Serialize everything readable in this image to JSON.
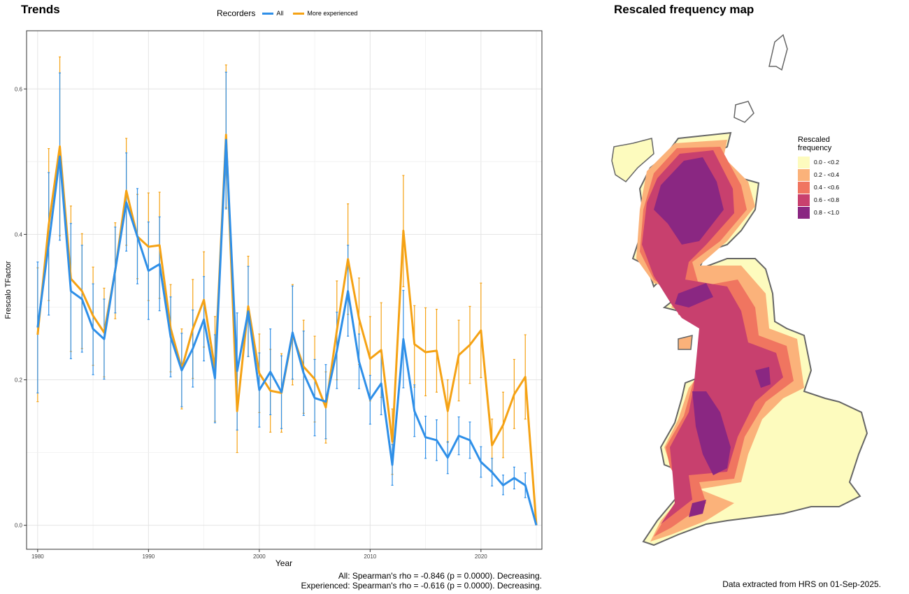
{
  "trends": {
    "title": "Trends",
    "legend_title": "Recorders",
    "caption_all": "All: Spearman's rho = -0.846 (p = 0.0000). Decreasing.",
    "caption_experienced": "Experienced: Spearman's rho = -0.616 (p = 0.0000). Decreasing."
  },
  "map": {
    "title": "Rescaled frequency map",
    "legend_title": "Rescaled frequency",
    "legend_items": [
      {
        "label": "0.0 - <0.2",
        "color": "#FDFBBE"
      },
      {
        "label": "0.2 - <0.4",
        "color": "#FBB27A"
      },
      {
        "label": "0.4 - <0.6",
        "color": "#F07560"
      },
      {
        "label": "0.6 - <0.8",
        "color": "#C8406E"
      },
      {
        "label": "0.8 - <1.0",
        "color": "#8A2782"
      }
    ],
    "footer": "Data extracted from HRS on 01-Sep-2025."
  },
  "chart_data": {
    "type": "line",
    "title": "Trends",
    "xlabel": "Year",
    "ylabel": "Frescalo TFactor",
    "xlim": [
      1979,
      2025.5
    ],
    "ylim": [
      -0.033,
      0.68
    ],
    "x_ticks": [
      "1980",
      "1990",
      "2000",
      "2010",
      "2020"
    ],
    "y_ticks": [
      "0.0",
      "0.2",
      "0.4",
      "0.6"
    ],
    "grid": true,
    "legend_position": "top",
    "x": [
      1980,
      1981,
      1982,
      1983,
      1984,
      1985,
      1986,
      1987,
      1988,
      1989,
      1990,
      1991,
      1992,
      1993,
      1994,
      1995,
      1996,
      1997,
      1998,
      1999,
      2000,
      2001,
      2002,
      2003,
      2004,
      2005,
      2006,
      2007,
      2008,
      2009,
      2010,
      2011,
      2012,
      2013,
      2014,
      2015,
      2016,
      2017,
      2018,
      2019,
      2020,
      2021,
      2022,
      2023,
      2024,
      2025
    ],
    "series": [
      {
        "name": "All",
        "color": "#2E8FE8",
        "values": [
          0.272,
          0.387,
          0.507,
          0.322,
          0.311,
          0.27,
          0.256,
          0.351,
          0.444,
          0.397,
          0.35,
          0.359,
          0.259,
          0.213,
          0.243,
          0.283,
          0.202,
          0.53,
          0.212,
          0.294,
          0.186,
          0.211,
          0.183,
          0.265,
          0.209,
          0.175,
          0.17,
          0.24,
          0.322,
          0.225,
          0.173,
          0.195,
          0.083,
          0.256,
          0.157,
          0.121,
          0.117,
          0.093,
          0.123,
          0.117,
          0.087,
          0.073,
          0.055,
          0.065,
          0.055,
          0.0
        ],
        "lower": [
          0.182,
          0.289,
          0.392,
          0.229,
          0.238,
          0.207,
          0.201,
          0.292,
          0.377,
          0.332,
          0.283,
          0.295,
          0.204,
          0.163,
          0.19,
          0.226,
          0.141,
          0.435,
          0.131,
          0.232,
          0.135,
          0.152,
          0.133,
          0.201,
          0.151,
          0.123,
          0.119,
          0.188,
          0.26,
          0.188,
          0.139,
          0.152,
          0.055,
          0.189,
          0.122,
          0.092,
          0.089,
          0.071,
          0.097,
          0.092,
          0.066,
          0.054,
          0.042,
          0.05,
          0.038,
          0.0
        ],
        "upper": [
          0.362,
          0.485,
          0.622,
          0.415,
          0.385,
          0.332,
          0.311,
          0.41,
          0.512,
          0.463,
          0.417,
          0.424,
          0.314,
          0.264,
          0.296,
          0.342,
          0.262,
          0.623,
          0.292,
          0.356,
          0.237,
          0.27,
          0.233,
          0.329,
          0.267,
          0.228,
          0.221,
          0.293,
          0.385,
          0.263,
          0.206,
          0.238,
          0.111,
          0.323,
          0.193,
          0.15,
          0.145,
          0.115,
          0.149,
          0.142,
          0.108,
          0.092,
          0.069,
          0.08,
          0.072,
          0.0
        ]
      },
      {
        "name": "More experienced",
        "color": "#F5A214",
        "values": [
          0.262,
          0.413,
          0.521,
          0.339,
          0.322,
          0.288,
          0.265,
          0.35,
          0.46,
          0.397,
          0.383,
          0.385,
          0.271,
          0.215,
          0.27,
          0.31,
          0.215,
          0.537,
          0.157,
          0.301,
          0.209,
          0.185,
          0.182,
          0.262,
          0.218,
          0.201,
          0.162,
          0.268,
          0.366,
          0.284,
          0.229,
          0.241,
          0.115,
          0.405,
          0.249,
          0.238,
          0.24,
          0.157,
          0.234,
          0.248,
          0.268,
          0.11,
          0.138,
          0.18,
          0.204,
          0.0
        ],
        "lower": [
          0.17,
          0.309,
          0.398,
          0.239,
          0.243,
          0.22,
          0.204,
          0.284,
          0.385,
          0.339,
          0.309,
          0.312,
          0.211,
          0.16,
          0.202,
          0.245,
          0.143,
          0.437,
          0.1,
          0.232,
          0.155,
          0.128,
          0.128,
          0.193,
          0.154,
          0.142,
          0.113,
          0.2,
          0.29,
          0.221,
          0.171,
          0.176,
          0.07,
          0.328,
          0.19,
          0.178,
          0.183,
          0.114,
          0.171,
          0.195,
          0.203,
          0.074,
          0.093,
          0.133,
          0.146,
          0.0
        ],
        "upper": [
          0.354,
          0.518,
          0.644,
          0.439,
          0.401,
          0.355,
          0.326,
          0.416,
          0.532,
          0.455,
          0.457,
          0.458,
          0.331,
          0.27,
          0.338,
          0.376,
          0.287,
          0.633,
          0.214,
          0.37,
          0.263,
          0.242,
          0.236,
          0.331,
          0.282,
          0.26,
          0.211,
          0.336,
          0.442,
          0.34,
          0.287,
          0.306,
          0.16,
          0.481,
          0.302,
          0.299,
          0.297,
          0.2,
          0.282,
          0.301,
          0.333,
          0.146,
          0.183,
          0.228,
          0.262,
          0.0
        ]
      }
    ]
  }
}
